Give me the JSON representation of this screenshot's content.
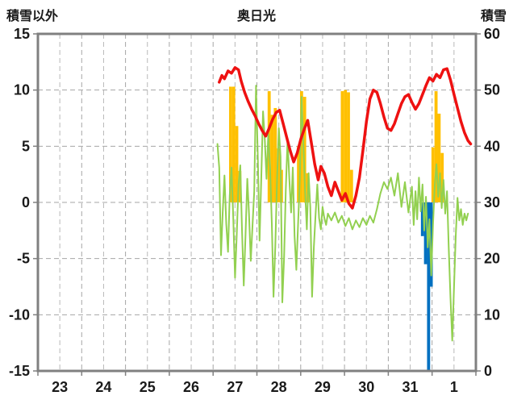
{
  "header": {
    "left_axis_title": "積雪以外",
    "chart_title": "奥日光",
    "right_axis_title": "積雪"
  },
  "colors": {
    "temperature_line": "#ee1111",
    "green_line": "#92d050",
    "orange_bars": "#ffc000",
    "blue_bars": "#0070c0",
    "purple_line": "#7030a0",
    "grid": "#a6a6a6",
    "grid_minor": "#b8b8b8",
    "border": "#808080",
    "text": "#1a1a1a"
  },
  "chart_data": {
    "type": "line",
    "title": "奥日光",
    "left_axis": {
      "label": "積雪以外",
      "min": -15,
      "max": 15,
      "ticks": [
        15,
        10,
        5,
        0,
        -5,
        -10,
        -15
      ]
    },
    "right_axis": {
      "label": "積雪",
      "min": 0,
      "max": 60,
      "ticks": [
        60,
        50,
        40,
        30,
        20,
        10,
        0
      ]
    },
    "x_axis": {
      "labels": [
        "23",
        "24",
        "25",
        "26",
        "27",
        "28",
        "29",
        "30",
        "31",
        "1"
      ],
      "min": 0,
      "max": 10,
      "note": "one unit per day; labels centered at day midpoints; data begins early on day 27"
    },
    "grid": {
      "h_step": 5,
      "v_step": 0.5,
      "style": "dashed"
    },
    "legend": "none",
    "series": [
      {
        "name": "orange-bars",
        "type": "bar",
        "axis": "left",
        "color": "#ffc000",
        "bar_width": 0.07,
        "points": [
          [
            4.4,
            10.3
          ],
          [
            4.47,
            10.3
          ],
          [
            4.54,
            6.8
          ],
          [
            4.61,
            2.8
          ],
          [
            5.28,
            9.9
          ],
          [
            5.35,
            7.8
          ],
          [
            5.42,
            8.4
          ],
          [
            5.49,
            4.8
          ],
          [
            5.56,
            2.9
          ],
          [
            5.95,
            5.0
          ],
          [
            6.02,
            9.9
          ],
          [
            6.09,
            9.4
          ],
          [
            6.16,
            2.6
          ],
          [
            6.95,
            9.9
          ],
          [
            7.02,
            10.0
          ],
          [
            7.09,
            9.8
          ],
          [
            7.16,
            2.9
          ],
          [
            9.02,
            4.9
          ],
          [
            9.09,
            9.9
          ],
          [
            9.16,
            7.9
          ],
          [
            9.23,
            4.4
          ]
        ]
      },
      {
        "name": "blue-bars",
        "type": "bar",
        "axis": "left",
        "color": "#0070c0",
        "bar_width": 0.07,
        "points": [
          [
            8.78,
            -3.0
          ],
          [
            8.85,
            -5.5
          ],
          [
            8.92,
            -15.0
          ],
          [
            8.98,
            -7.5
          ]
        ]
      },
      {
        "name": "green-line",
        "type": "line",
        "axis": "left",
        "color": "#92d050",
        "width": 2,
        "points": [
          [
            4.1,
            5.2
          ],
          [
            4.14,
            3.1
          ],
          [
            4.18,
            -4.7
          ],
          [
            4.22,
            -0.9
          ],
          [
            4.26,
            2.4
          ],
          [
            4.3,
            -1.9
          ],
          [
            4.34,
            -4.4
          ],
          [
            4.38,
            0.6
          ],
          [
            4.42,
            3.1
          ],
          [
            4.46,
            -1.4
          ],
          [
            4.5,
            -6.7
          ],
          [
            4.54,
            -2.9
          ],
          [
            4.58,
            1.6
          ],
          [
            4.62,
            3.3
          ],
          [
            4.66,
            -2.4
          ],
          [
            4.7,
            -7.4
          ],
          [
            4.74,
            -2.9
          ],
          [
            4.78,
            2.1
          ],
          [
            4.82,
            -1.0
          ],
          [
            4.86,
            -5.2
          ],
          [
            4.9,
            -2.0
          ],
          [
            4.94,
            1.0
          ],
          [
            4.98,
            10.4
          ],
          [
            5.02,
            4.1
          ],
          [
            5.06,
            -3.4
          ],
          [
            5.1,
            2.1
          ],
          [
            5.14,
            8.1
          ],
          [
            5.18,
            5.6
          ],
          [
            5.22,
            2.1
          ],
          [
            5.26,
            6.1
          ],
          [
            5.3,
            3.1
          ],
          [
            5.34,
            -1.9
          ],
          [
            5.38,
            -8.4
          ],
          [
            5.42,
            -3.9
          ],
          [
            5.46,
            2.1
          ],
          [
            5.5,
            6.6
          ],
          [
            5.54,
            4.1
          ],
          [
            5.58,
            -8.9
          ],
          [
            5.62,
            -4.9
          ],
          [
            5.66,
            1.1
          ],
          [
            5.7,
            5.6
          ],
          [
            5.74,
            2.1
          ],
          [
            5.78,
            -0.9
          ],
          [
            5.82,
            3.1
          ],
          [
            5.86,
            -3.0
          ],
          [
            5.9,
            -6.0
          ],
          [
            5.94,
            -2.0
          ],
          [
            5.98,
            2.0
          ],
          [
            6.02,
            9.4
          ],
          [
            6.06,
            5.1
          ],
          [
            6.1,
            1.1
          ],
          [
            6.14,
            -2.4
          ],
          [
            6.18,
            2.6
          ],
          [
            6.22,
            -0.4
          ],
          [
            6.26,
            -8.4
          ],
          [
            6.3,
            -4.0
          ],
          [
            6.34,
            -1.0
          ],
          [
            6.38,
            1.6
          ],
          [
            6.42,
            -1.4
          ],
          [
            6.46,
            -2.4
          ],
          [
            6.5,
            -0.4
          ],
          [
            6.54,
            -1.4
          ],
          [
            6.58,
            -2.0
          ],
          [
            6.62,
            -1.0
          ],
          [
            6.7,
            -1.6
          ],
          [
            6.78,
            -0.9
          ],
          [
            6.86,
            -1.8
          ],
          [
            6.94,
            -1.2
          ],
          [
            7.02,
            -2.1
          ],
          [
            7.1,
            -1.4
          ],
          [
            7.18,
            -2.4
          ],
          [
            7.26,
            -1.6
          ],
          [
            7.34,
            -2.2
          ],
          [
            7.42,
            -1.4
          ],
          [
            7.5,
            -2.0
          ],
          [
            7.58,
            -1.2
          ],
          [
            7.66,
            -1.8
          ],
          [
            7.74,
            -0.6
          ],
          [
            7.82,
            0.8
          ],
          [
            7.9,
            1.8
          ],
          [
            7.98,
            1.2
          ],
          [
            8.06,
            2.2
          ],
          [
            8.14,
            0.6
          ],
          [
            8.22,
            2.6
          ],
          [
            8.3,
            -0.4
          ],
          [
            8.38,
            1.8
          ],
          [
            8.46,
            -0.9
          ],
          [
            8.54,
            1.4
          ],
          [
            8.58,
            -2.0
          ],
          [
            8.62,
            1.0
          ],
          [
            8.66,
            -1.5
          ],
          [
            8.7,
            2.2
          ],
          [
            8.74,
            -0.8
          ],
          [
            8.78,
            1.6
          ],
          [
            8.82,
            -2.5
          ],
          [
            8.86,
            0.5
          ],
          [
            8.9,
            -4.0
          ],
          [
            8.94,
            -1.5
          ],
          [
            8.98,
            -6.5
          ],
          [
            9.02,
            -2.0
          ],
          [
            9.06,
            1.5
          ],
          [
            9.1,
            3.4
          ],
          [
            9.14,
            0.5
          ],
          [
            9.18,
            2.6
          ],
          [
            9.22,
            -0.5
          ],
          [
            9.26,
            2.0
          ],
          [
            9.3,
            -1.0
          ],
          [
            9.34,
            1.0
          ],
          [
            9.38,
            -4.0
          ],
          [
            9.42,
            -8.5
          ],
          [
            9.46,
            -12.3
          ],
          [
            9.5,
            -7.5
          ],
          [
            9.54,
            -3.0
          ],
          [
            9.58,
            0.4
          ],
          [
            9.62,
            -1.6
          ],
          [
            9.66,
            -0.6
          ],
          [
            9.7,
            -2.0
          ],
          [
            9.74,
            -1.0
          ],
          [
            9.78,
            -1.6
          ],
          [
            9.82,
            -1.0
          ]
        ]
      },
      {
        "name": "temperature-line",
        "type": "line",
        "axis": "left",
        "color": "#ee1111",
        "width": 3.5,
        "points": [
          [
            4.14,
            10.7
          ],
          [
            4.2,
            11.3
          ],
          [
            4.26,
            11.0
          ],
          [
            4.34,
            11.7
          ],
          [
            4.42,
            11.5
          ],
          [
            4.5,
            12.0
          ],
          [
            4.58,
            11.8
          ],
          [
            4.64,
            10.8
          ],
          [
            4.72,
            9.8
          ],
          [
            4.8,
            9.0
          ],
          [
            4.88,
            8.3
          ],
          [
            4.96,
            7.7
          ],
          [
            5.04,
            7.0
          ],
          [
            5.12,
            6.4
          ],
          [
            5.2,
            5.9
          ],
          [
            5.28,
            6.6
          ],
          [
            5.36,
            7.4
          ],
          [
            5.44,
            8.0
          ],
          [
            5.52,
            8.2
          ],
          [
            5.6,
            7.0
          ],
          [
            5.68,
            5.8
          ],
          [
            5.76,
            4.6
          ],
          [
            5.84,
            3.6
          ],
          [
            5.92,
            4.4
          ],
          [
            6.0,
            5.6
          ],
          [
            6.08,
            6.5
          ],
          [
            6.16,
            7.3
          ],
          [
            6.24,
            5.4
          ],
          [
            6.32,
            3.4
          ],
          [
            6.4,
            2.0
          ],
          [
            6.46,
            3.2
          ],
          [
            6.54,
            2.6
          ],
          [
            6.62,
            1.4
          ],
          [
            6.7,
            0.6
          ],
          [
            6.78,
            1.8
          ],
          [
            6.86,
            1.0
          ],
          [
            6.94,
            0.2
          ],
          [
            7.02,
            0.8
          ],
          [
            7.1,
            -0.1
          ],
          [
            7.18,
            -0.5
          ],
          [
            7.26,
            0.6
          ],
          [
            7.34,
            2.2
          ],
          [
            7.42,
            4.6
          ],
          [
            7.5,
            7.2
          ],
          [
            7.58,
            9.2
          ],
          [
            7.66,
            10.0
          ],
          [
            7.74,
            9.8
          ],
          [
            7.82,
            8.8
          ],
          [
            7.9,
            7.6
          ],
          [
            7.98,
            6.6
          ],
          [
            8.06,
            6.4
          ],
          [
            8.14,
            7.0
          ],
          [
            8.22,
            7.9
          ],
          [
            8.3,
            8.8
          ],
          [
            8.38,
            9.4
          ],
          [
            8.46,
            9.6
          ],
          [
            8.54,
            8.9
          ],
          [
            8.62,
            8.3
          ],
          [
            8.7,
            8.8
          ],
          [
            8.78,
            9.6
          ],
          [
            8.86,
            10.4
          ],
          [
            8.94,
            11.1
          ],
          [
            9.02,
            10.8
          ],
          [
            9.1,
            11.4
          ],
          [
            9.18,
            11.1
          ],
          [
            9.26,
            11.8
          ],
          [
            9.34,
            11.9
          ],
          [
            9.42,
            10.9
          ],
          [
            9.5,
            9.6
          ],
          [
            9.58,
            8.4
          ],
          [
            9.66,
            7.2
          ],
          [
            9.74,
            6.2
          ],
          [
            9.82,
            5.5
          ],
          [
            9.88,
            5.2
          ]
        ]
      },
      {
        "name": "snow-depth-line",
        "type": "line",
        "axis": "right",
        "color": "#7030a0",
        "width": 3,
        "points": [
          [
            4.1,
            0
          ],
          [
            10.0,
            0
          ]
        ]
      }
    ]
  }
}
